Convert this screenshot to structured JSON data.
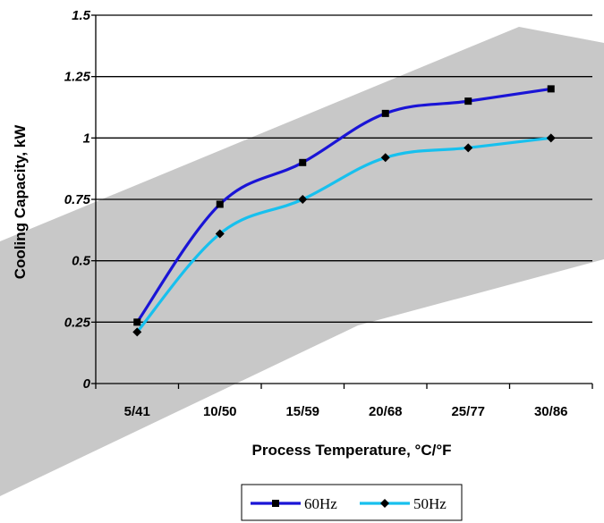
{
  "chart_data": {
    "type": "line",
    "title": "",
    "xlabel": "Process Temperature, °C/°F",
    "ylabel": "Cooling Capacity, kW",
    "categories": [
      "5/41",
      "10/50",
      "15/59",
      "20/68",
      "25/77",
      "30/86"
    ],
    "y_ticks": [
      "0",
      "0.25",
      "0.5",
      "0.75",
      "1",
      "1.25",
      "1.5"
    ],
    "ylim": [
      0,
      1.5
    ],
    "grid": "horizontal",
    "legend_position": "bottom",
    "series": [
      {
        "name": "60Hz",
        "color": "#1a14d6",
        "marker": "square",
        "values": [
          0.25,
          0.73,
          0.9,
          1.1,
          1.15,
          1.2
        ]
      },
      {
        "name": "50Hz",
        "color": "#17c0ee",
        "marker": "diamond",
        "values": [
          0.21,
          0.61,
          0.75,
          0.92,
          0.96,
          1.0
        ]
      }
    ]
  }
}
